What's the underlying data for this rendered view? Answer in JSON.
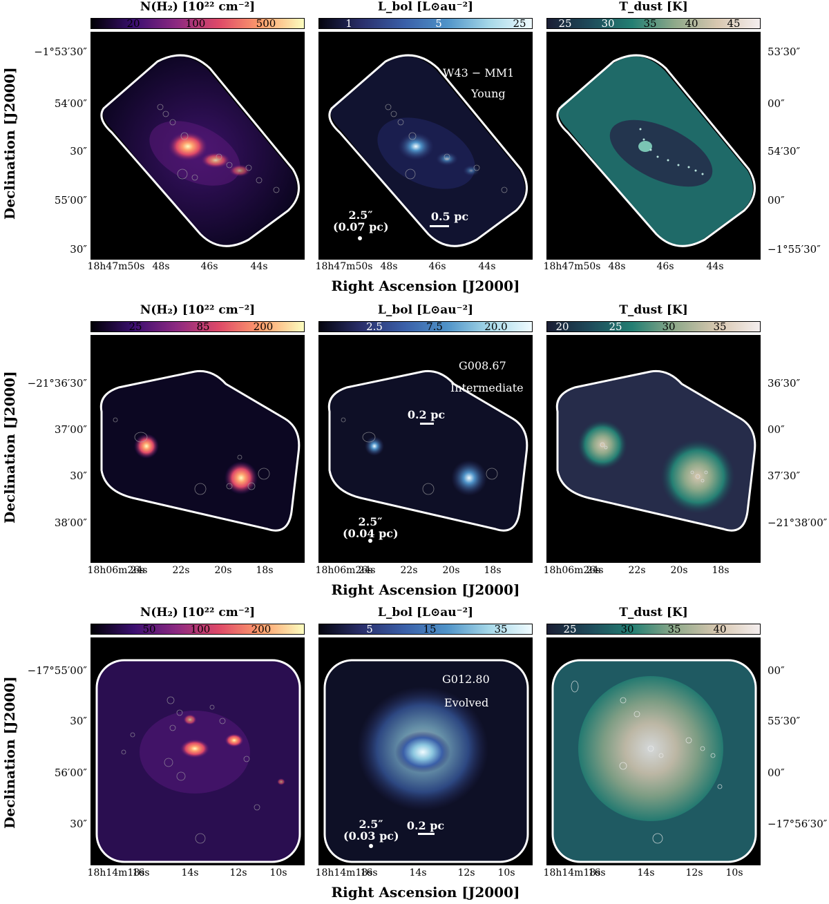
{
  "rows": [
    {
      "id": "w43",
      "colorbars": [
        {
          "title": "N(H₂) [10²² cm⁻²]",
          "ticks": [
            "20",
            "100",
            "500"
          ],
          "gradient": "magma"
        },
        {
          "title": "L_bol [L⊙au⁻²]",
          "ticks": [
            "1",
            "5",
            "25"
          ],
          "gradient": "blue"
        },
        {
          "title": "T_dust [K]",
          "ticks": [
            "25",
            "30",
            "35",
            "40",
            "45"
          ],
          "gradient": "teal"
        }
      ],
      "y_ticks_left": [
        "−1°53′30″",
        "54′00″",
        "30″",
        "55′00″",
        "30″"
      ],
      "y_ticks_right": [
        "53′30″",
        "00″",
        "54′30″",
        "00″",
        "−1°55′30″"
      ],
      "x_ticks": [
        "18h47m50s",
        "48s",
        "46s",
        "44s"
      ],
      "source": "W43 − MM1",
      "stage": "Young",
      "beam": "2.5″",
      "beam_pc": "(0.07 pc)",
      "scalebar": "0.5 pc"
    },
    {
      "id": "g008",
      "colorbars": [
        {
          "title": "N(H₂) [10²² cm⁻²]",
          "ticks": [
            "25",
            "85",
            "200"
          ],
          "gradient": "magma"
        },
        {
          "title": "L_bol [L⊙au⁻²]",
          "ticks": [
            "2.5",
            "7.5",
            "20.0"
          ],
          "gradient": "blue"
        },
        {
          "title": "T_dust [K]",
          "ticks": [
            "20",
            "25",
            "30",
            "35"
          ],
          "gradient": "teal"
        }
      ],
      "y_ticks_left": [
        "−21°36′30″",
        "37′00″",
        "30″",
        "38′00″"
      ],
      "y_ticks_right": [
        "36′30″",
        "00″",
        "37′30″",
        "−21°38′00″"
      ],
      "x_ticks": [
        "18h06m26s",
        "24s",
        "22s",
        "20s",
        "18s"
      ],
      "source": "G008.67",
      "stage": "Intermediate",
      "beam": "2.5″",
      "beam_pc": "(0.04 pc)",
      "scalebar": "0.2 pc"
    },
    {
      "id": "g012",
      "colorbars": [
        {
          "title": "N(H₂) [10²² cm⁻²]",
          "ticks": [
            "50",
            "100",
            "200"
          ],
          "gradient": "magma"
        },
        {
          "title": "L_bol [L⊙au⁻²]",
          "ticks": [
            "5",
            "15",
            "35"
          ],
          "gradient": "blue"
        },
        {
          "title": "T_dust [K]",
          "ticks": [
            "25",
            "30",
            "35",
            "40"
          ],
          "gradient": "teal"
        }
      ],
      "y_ticks_left": [
        "−17°55′00″",
        "30″",
        "56′00″",
        "30″"
      ],
      "y_ticks_right": [
        "00″",
        "55′30″",
        "00″",
        "−17°56′30″"
      ],
      "x_ticks": [
        "18h14m18s",
        "16s",
        "14s",
        "12s",
        "10s"
      ],
      "source": "G012.80",
      "stage": "Evolved",
      "beam": "2.5″",
      "beam_pc": "(0.03 pc)",
      "scalebar": "0.2 pc"
    }
  ],
  "axis_titles": {
    "x": "Right Ascension [J2000]",
    "y": "Declination [J2000]"
  },
  "colors": {
    "magma": [
      "#000004",
      "#3b0f70",
      "#8c2981",
      "#de4968",
      "#fe9f6d",
      "#fcfdbf"
    ],
    "blue": [
      "#05050f",
      "#2a2f6b",
      "#3a5fa8",
      "#4f93c8",
      "#a6d8e8",
      "#f0fbff"
    ],
    "teal": [
      "#1a1d33",
      "#1e4a5a",
      "#247f73",
      "#8fa98a",
      "#d8c7b0",
      "#f4eeee"
    ]
  }
}
